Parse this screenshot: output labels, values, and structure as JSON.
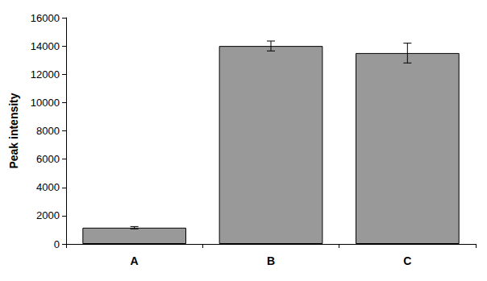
{
  "chart_data": {
    "type": "bar",
    "y_label": "Peak intensity",
    "categories": [
      "A",
      "B",
      "C"
    ],
    "values": [
      1150,
      14000,
      13500
    ],
    "errors": [
      80,
      350,
      700
    ],
    "color": "#999999",
    "ylim": [
      0,
      16000
    ],
    "yticks": [
      0,
      2000,
      4000,
      6000,
      8000,
      10000,
      12000,
      14000,
      16000
    ],
    "grid": false
  }
}
